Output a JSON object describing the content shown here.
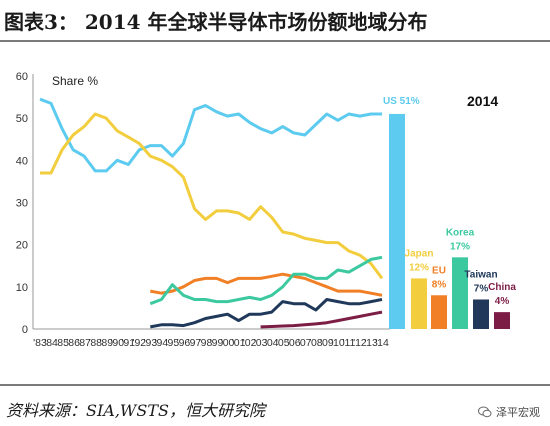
{
  "figure": {
    "title": "图表3：  2014 年全球半导体市场份额地域分布",
    "source": "资料来源：SIA,WSTS，恒大研究院",
    "watermark": "泽平宏观",
    "watermark_icon": "wechat-icon"
  },
  "chart_data": {
    "type": "line+bar",
    "ylabel": "Share %",
    "bar_year_label": "2014",
    "ylim": [
      0,
      60
    ],
    "yticks": [
      0,
      10,
      20,
      30,
      40,
      50,
      60
    ],
    "x_tick_labels": [
      "'83",
      "'84",
      "'85",
      "'86",
      "'87",
      "'88",
      "'89",
      "'90",
      "'91",
      "'92",
      "'93",
      "'94",
      "'95",
      "'96",
      "'97",
      "'98",
      "'99",
      "'00",
      "'01",
      "'02",
      "'03",
      "'04",
      "'05",
      "'06",
      "'07",
      "'08",
      "'09",
      "'10",
      "'11",
      "'12",
      "'13",
      "'14"
    ],
    "years": [
      1983,
      1984,
      1985,
      1986,
      1987,
      1988,
      1989,
      1990,
      1991,
      1992,
      1993,
      1994,
      1995,
      1996,
      1997,
      1998,
      1999,
      2000,
      2001,
      2002,
      2003,
      2004,
      2005,
      2006,
      2007,
      2008,
      2009,
      2010,
      2011,
      2012,
      2013,
      2014
    ],
    "series": [
      {
        "name": "US",
        "color": "#5ccbef",
        "values": [
          54.5,
          53.5,
          47.5,
          42.5,
          41,
          37.5,
          37.5,
          40,
          39,
          42.5,
          43.5,
          43.5,
          41,
          44,
          52,
          53,
          51.5,
          50.5,
          51,
          49,
          47.5,
          46.5,
          48,
          46.5,
          46,
          48.5,
          51,
          49.5,
          51,
          50.5,
          51,
          51
        ]
      },
      {
        "name": "Japan",
        "color": "#f2cd3d",
        "values": [
          37,
          37,
          42.5,
          46,
          48,
          51,
          50,
          47,
          45.5,
          44,
          41,
          40,
          38.5,
          36,
          28.5,
          26,
          28,
          28,
          27.5,
          26,
          29,
          26.5,
          23,
          22.5,
          21.5,
          21,
          20.5,
          20.5,
          18.5,
          17.5,
          15.5,
          12
        ]
      },
      {
        "name": "EU",
        "color": "#f07f26",
        "values": [
          null,
          null,
          null,
          null,
          null,
          null,
          null,
          null,
          null,
          null,
          9,
          8.5,
          9,
          10,
          11.5,
          12,
          12,
          11,
          12,
          12,
          12,
          12.5,
          13,
          12.5,
          12,
          11,
          10,
          9,
          9,
          9,
          8.5,
          8
        ]
      },
      {
        "name": "Korea",
        "color": "#3cc9a0",
        "values": [
          null,
          null,
          null,
          null,
          null,
          null,
          null,
          null,
          null,
          null,
          6,
          7,
          10.5,
          8,
          7,
          7,
          6.5,
          6.5,
          7,
          7.5,
          7,
          8,
          10,
          13,
          13,
          12,
          12,
          14,
          13.5,
          15,
          16.5,
          17
        ]
      },
      {
        "name": "Taiwan",
        "color": "#20395a",
        "values": [
          null,
          null,
          null,
          null,
          null,
          null,
          null,
          null,
          null,
          null,
          0.5,
          1,
          1,
          0.8,
          1.5,
          2.5,
          3,
          3.5,
          2,
          3.5,
          3.5,
          4,
          6.5,
          6,
          6,
          4.5,
          7,
          6.5,
          6,
          6,
          6.5,
          7
        ]
      },
      {
        "name": "China",
        "color": "#7c1d45",
        "values": [
          null,
          null,
          null,
          null,
          null,
          null,
          null,
          null,
          null,
          null,
          null,
          null,
          null,
          null,
          null,
          null,
          null,
          null,
          null,
          null,
          0.5,
          0.6,
          0.7,
          0.8,
          1,
          1.2,
          1.5,
          2,
          2.5,
          3,
          3.5,
          4
        ]
      }
    ],
    "bars": [
      {
        "name": "US",
        "label": "US 51%",
        "value": 51,
        "color": "#5ccbef"
      },
      {
        "name": "Japan",
        "label_line1": "Japan",
        "label_line2": "12%",
        "value": 12,
        "color": "#f2cd3d"
      },
      {
        "name": "EU",
        "label_line1": "EU",
        "label_line2": "8%",
        "value": 8,
        "color": "#f07f26"
      },
      {
        "name": "Korea",
        "label_line1": "Korea",
        "label_line2": "17%",
        "value": 17,
        "color": "#3cc9a0"
      },
      {
        "name": "Taiwan",
        "label_line1": "Taiwan",
        "label_line2": "7%",
        "value": 7,
        "color": "#20395a"
      },
      {
        "name": "China",
        "label_line1": "China",
        "label_line2": "4%",
        "value": 4,
        "color": "#7c1d45"
      }
    ]
  }
}
